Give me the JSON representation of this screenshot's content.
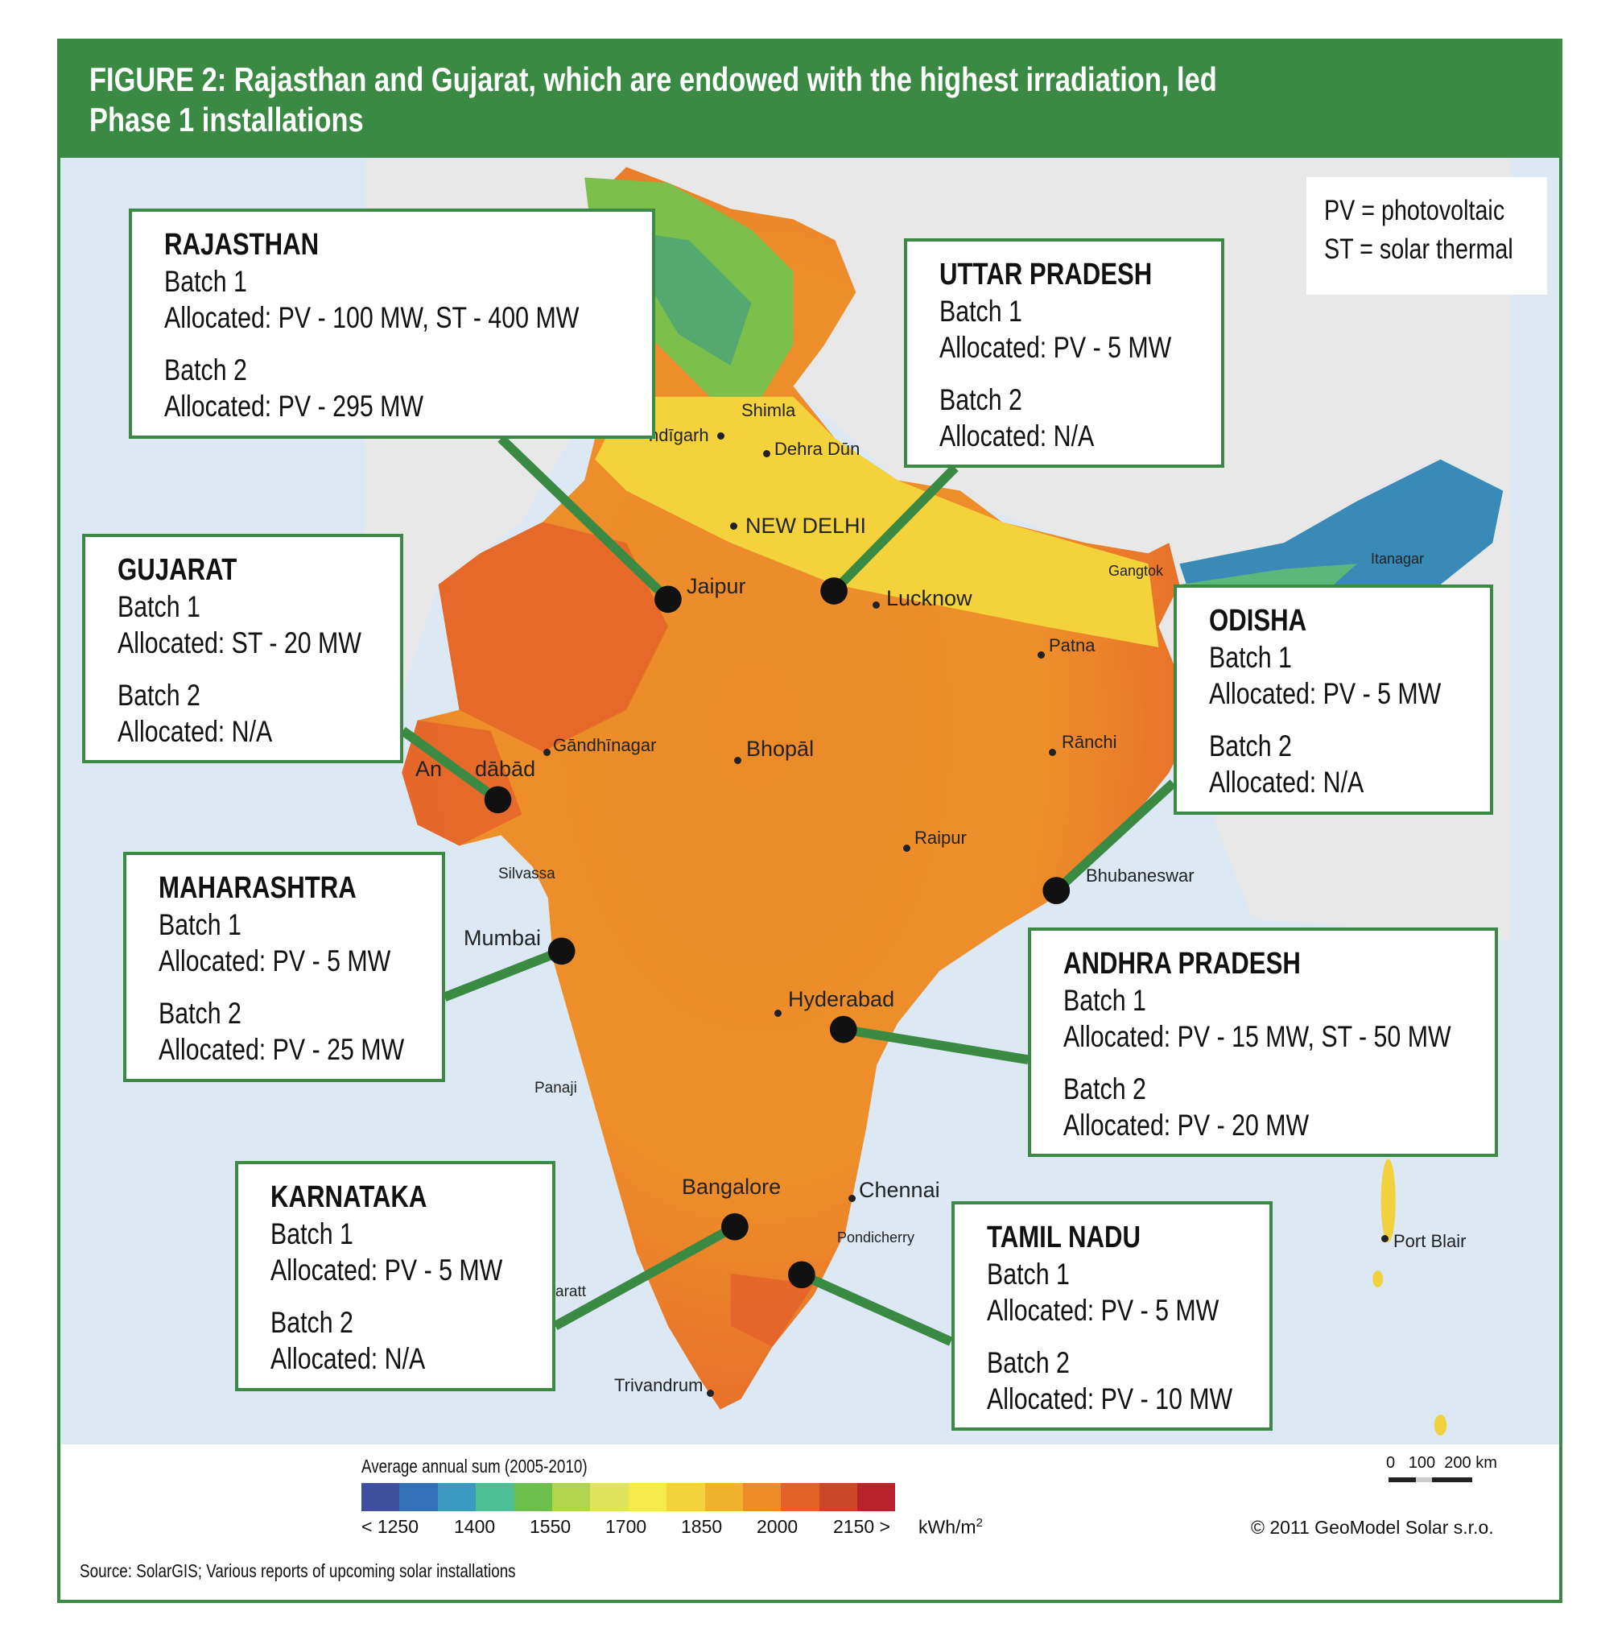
{
  "title": {
    "line1": "FIGURE 2: Rajasthan and Gujarat, which are endowed with the highest irradiation, led",
    "line2": "Phase 1 installations"
  },
  "abbrev": {
    "pv": "PV = photovoltaic",
    "st": "ST = solar thermal"
  },
  "states": [
    {
      "name": "RAJASTHAN",
      "b1": "Batch 1",
      "a1": "Allocated: PV - 100 MW, ST - 400 MW",
      "b2": "Batch 2",
      "a2": "Allocated: PV - 295 MW"
    },
    {
      "name": "UTTAR PRADESH",
      "b1": "Batch 1",
      "a1": "Allocated: PV - 5 MW",
      "b2": "Batch 2",
      "a2": "Allocated: N/A"
    },
    {
      "name": "GUJARAT",
      "b1": "Batch 1",
      "a1": "Allocated: ST - 20 MW",
      "b2": "Batch 2",
      "a2": "Allocated: N/A"
    },
    {
      "name": "ODISHA",
      "b1": "Batch 1",
      "a1": "Allocated: PV - 5 MW",
      "b2": "Batch 2",
      "a2": "Allocated: N/A"
    },
    {
      "name": "MAHARASHTRA",
      "b1": "Batch 1",
      "a1": "Allocated: PV - 5 MW",
      "b2": "Batch 2",
      "a2": "Allocated: PV - 25 MW"
    },
    {
      "name": "ANDHRA PRADESH",
      "b1": "Batch 1",
      "a1": "Allocated: PV - 15 MW, ST - 50 MW",
      "b2": "Batch 2",
      "a2": "Allocated: PV - 20 MW"
    },
    {
      "name": "KARNATAKA",
      "b1": "Batch 1",
      "a1": "Allocated: PV - 5 MW",
      "b2": "Batch 2",
      "a2": "Allocated: N/A"
    },
    {
      "name": "TAMIL NADU",
      "b1": "Batch 1",
      "a1": "Allocated: PV - 5 MW",
      "b2": "Batch 2",
      "a2": "Allocated: PV - 10 MW"
    }
  ],
  "cities": [
    "Shimla",
    "ndīgarh",
    "Dehra Dūn",
    "NEW DELHI",
    "Jaipur",
    "Lucknow",
    "Patna",
    "Gangtok",
    "Itanagar",
    "Gāndhīnagar",
    "An",
    "dābād",
    "Bhopāl",
    "Rānchi",
    "Raipur",
    "Silvassa",
    "Bhubaneswar",
    "Mumbai",
    "Hyderabad",
    "Panaji",
    "Bangalore",
    "Chennai",
    "Pondicherry",
    "Port Blair",
    "Trivandrum",
    "aratt"
  ],
  "legend": {
    "title": "Average annual sum (2005-2010)",
    "ticks": [
      "< 1250",
      "1400",
      "1550",
      "1700",
      "1850",
      "2000",
      "2150 >"
    ],
    "unit": "kWh/m",
    "unit_sup": "2",
    "colors": [
      "#3f4fa0",
      "#3470b8",
      "#3a9ac0",
      "#4cbf94",
      "#6cbf4a",
      "#b0d44e",
      "#e0e35c",
      "#f4ea4c",
      "#f5d23c",
      "#f2b12c",
      "#ee8a28",
      "#e4622a",
      "#cc4628",
      "#b8222a"
    ]
  },
  "scale": {
    "label": "0   100  200 km"
  },
  "copyright": "© 2011 GeoModel Solar s.r.o.",
  "source": "Source: SolarGIS; Various reports of upcoming solar installations"
}
